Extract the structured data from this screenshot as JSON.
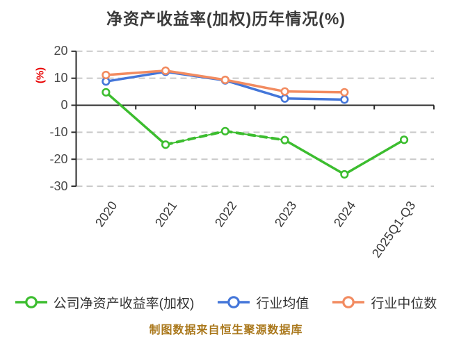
{
  "title": "净资产收益率(加权)历年情况(%)",
  "y_unit_label": "(%)",
  "caption": "制图数据来自恒生聚源数据库",
  "colors": {
    "company": "#3cbd2f",
    "industry_mean": "#4476d9",
    "industry_median": "#f28b60",
    "grid": "#c9c9c9",
    "axis": "#2b2b2b",
    "title_text": "#3a3a3a",
    "tick_text": "#4b4b4b",
    "xlabel_text": "#3a3a3a",
    "y_unit_text": "#e80000",
    "caption_text": "#aa781c",
    "legend_text": "#333333",
    "marker_fill": "#ffffff"
  },
  "chart_data": {
    "type": "line",
    "title": "净资产收益率(加权)历年情况(%)",
    "xlabel": "",
    "ylabel": "(%)",
    "categories": [
      "2020",
      "2021",
      "2022",
      "2023",
      "2024",
      "2025Q1-Q3"
    ],
    "series": [
      {
        "name": "公司净资产收益率(加权)",
        "color_key": "company",
        "values": [
          4.8,
          -14.6,
          -9.6,
          -12.9,
          -25.6,
          -12.8
        ],
        "dashed_segment_indices": [
          1,
          2
        ]
      },
      {
        "name": "行业均值",
        "color_key": "industry_mean",
        "values": [
          8.8,
          12.4,
          9.2,
          2.5,
          2.1,
          null
        ],
        "dashed_segment_indices": []
      },
      {
        "name": "行业中位数",
        "color_key": "industry_median",
        "values": [
          11.2,
          12.8,
          9.4,
          5.1,
          4.8,
          null
        ],
        "dashed_segment_indices": []
      }
    ],
    "yticks": [
      20,
      10,
      0,
      -10,
      -20,
      -30
    ],
    "ylim": [
      -30,
      20
    ],
    "grid": "horizontal dashed, solid axis at 0",
    "legend_position": "bottom"
  },
  "legend": {
    "items": [
      {
        "label": "公司净资产收益率(加权)",
        "color_key": "company"
      },
      {
        "label": "行业均值",
        "color_key": "industry_mean"
      },
      {
        "label": "行业中位数",
        "color_key": "industry_median"
      }
    ]
  }
}
